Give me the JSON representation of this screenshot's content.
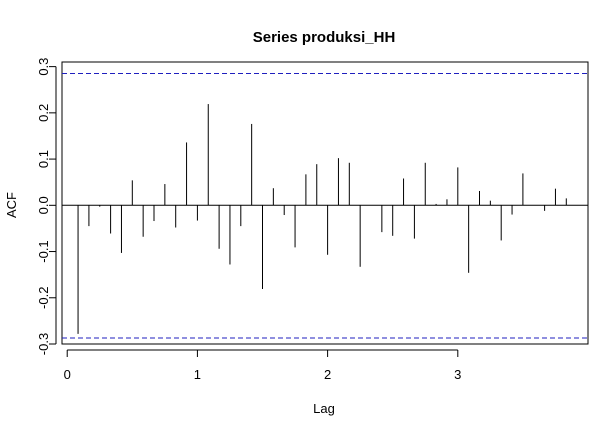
{
  "chart_data": {
    "type": "bar",
    "title": "Series produksi_HH",
    "xlabel": "Lag",
    "ylabel": "ACF",
    "xlim": [
      -0.04,
      4.0
    ],
    "ylim": [
      -0.3,
      0.31
    ],
    "xticks": [
      0,
      1,
      2,
      3
    ],
    "yticks": [
      -0.3,
      -0.2,
      -0.1,
      0.0,
      0.1,
      0.2,
      0.3
    ],
    "ytick_labels": [
      "-0.3",
      "-0.2",
      "-0.1",
      "0.0",
      "0.1",
      "0.2",
      "0.3"
    ],
    "xtick_labels": [
      "0",
      "1",
      "2",
      "3"
    ],
    "confidence_bounds": [
      0.285,
      -0.287
    ],
    "grid": false,
    "series": [
      {
        "lag": [
          0.0833,
          0.1667,
          0.25,
          0.3333,
          0.4167,
          0.5,
          0.5833,
          0.6667,
          0.75,
          0.8333,
          0.9167,
          1.0,
          1.0833,
          1.1667,
          1.25,
          1.3333,
          1.4167,
          1.5,
          1.5833,
          1.6667,
          1.75,
          1.8333,
          1.9167,
          2.0,
          2.0833,
          2.1667,
          2.25,
          2.3333,
          2.4167,
          2.5,
          2.5833,
          2.6667,
          2.75,
          2.8333,
          2.9167,
          3.0,
          3.0833,
          3.1667,
          3.25,
          3.3333,
          3.4167,
          3.5,
          3.5833,
          3.6667,
          3.75,
          3.8333
        ],
        "acf": [
          -0.278,
          -0.045,
          -0.003,
          -0.061,
          -0.103,
          0.054,
          -0.068,
          -0.034,
          0.046,
          -0.048,
          0.136,
          -0.033,
          0.219,
          -0.094,
          -0.128,
          -0.045,
          0.176,
          -0.181,
          0.037,
          -0.021,
          -0.091,
          0.067,
          0.089,
          -0.107,
          0.102,
          0.092,
          -0.133,
          0.0,
          -0.058,
          -0.066,
          0.058,
          -0.072,
          0.092,
          0.003,
          0.013,
          0.082,
          -0.146,
          0.031,
          0.01,
          -0.076,
          -0.02,
          0.069,
          0.0,
          -0.012,
          0.036,
          0.015
        ]
      }
    ]
  }
}
